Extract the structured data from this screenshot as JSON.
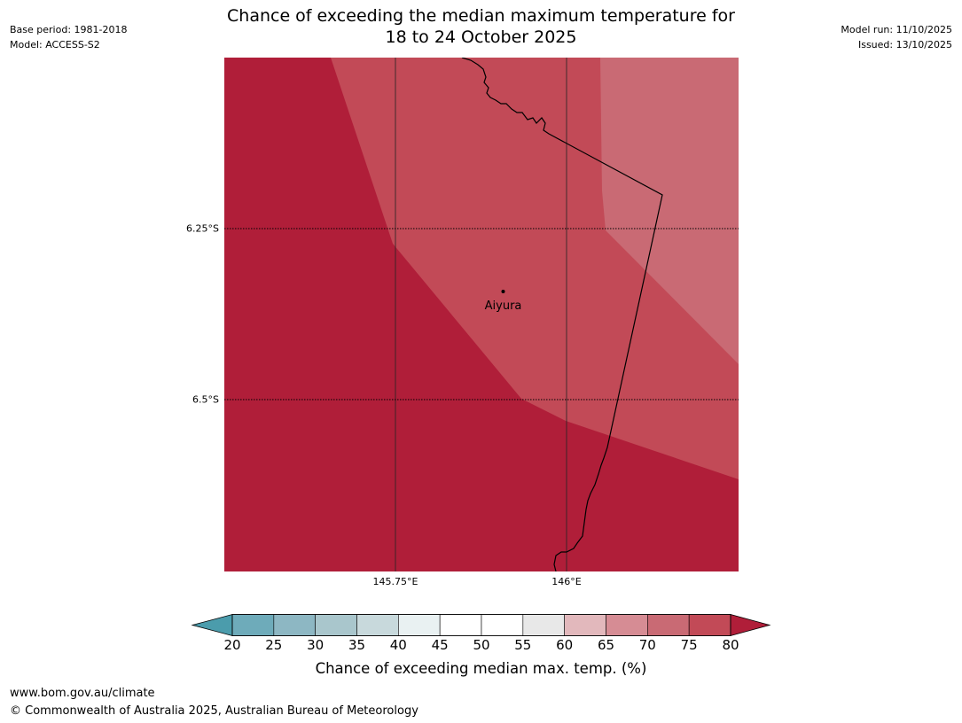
{
  "header": {
    "base_period": "Base period: 1981-2018",
    "model": "Model: ACCESS-S2",
    "model_run": "Model run: 11/10/2025",
    "issued": "Issued: 13/10/2025"
  },
  "title": {
    "line1": "Chance of exceeding the median maximum temperature for",
    "line2": "18 to 24 October 2025"
  },
  "map": {
    "lat_labels": [
      "6.25°S",
      "6.5°S"
    ],
    "lon_labels": [
      "145.75°E",
      "146°E"
    ],
    "place": {
      "name": "Aiyura"
    },
    "colors": {
      "band_75_80": "#c24a57",
      "band_80_plus": "#b01e39",
      "band_70_75": "#c96a74",
      "border": "#000000"
    }
  },
  "colorbar": {
    "ticks": [
      "20",
      "25",
      "30",
      "35",
      "40",
      "45",
      "50",
      "55",
      "60",
      "65",
      "70",
      "75",
      "80"
    ],
    "colors": [
      "#4b9cac",
      "#6eabba",
      "#8db7c3",
      "#a9c6cc",
      "#c8d9dc",
      "#e9f1f2",
      "#ffffff",
      "#ffffff",
      "#e8e8e8",
      "#e2b8bc",
      "#d68c94",
      "#c96a74",
      "#c24a57",
      "#b01e39"
    ],
    "label": "Chance of exceeding median max. temp. (%)"
  },
  "footer": {
    "url": "www.bom.gov.au/climate",
    "copyright": "© Commonwealth of Australia 2025, Australian Bureau of Meteorology"
  }
}
